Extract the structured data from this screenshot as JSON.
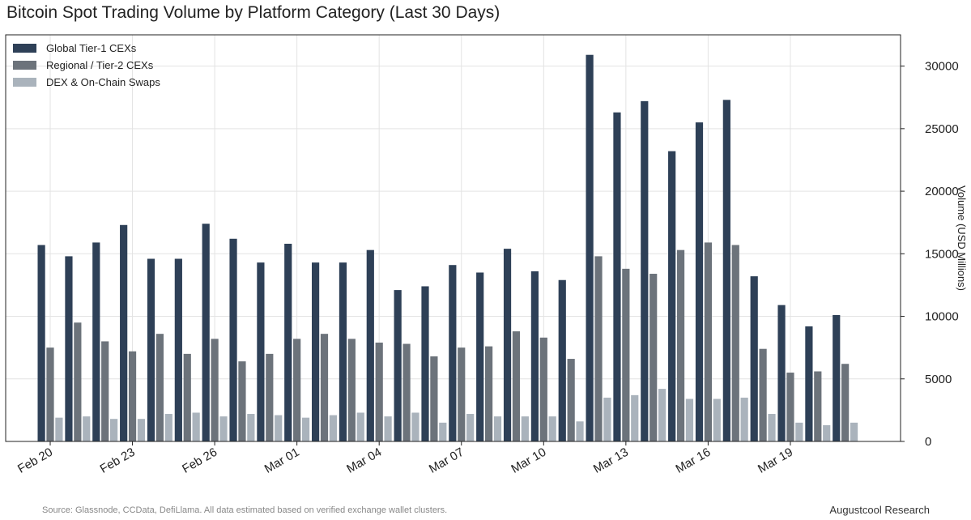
{
  "chart_data": {
    "type": "bar",
    "title": "Bitcoin Spot Trading Volume by Platform Category (Last 30 Days)",
    "xlabel": "",
    "ylabel": "Volume (USD Millions)",
    "ylim": [
      0,
      32500
    ],
    "yticks": [
      0,
      5000,
      10000,
      15000,
      20000,
      25000,
      30000
    ],
    "y_axis_position": "right",
    "grid": true,
    "legend_position": "top-left",
    "categories": [
      "Feb 20",
      "Feb 21",
      "Feb 22",
      "Feb 23",
      "Feb 24",
      "Feb 25",
      "Feb 26",
      "Feb 27",
      "Feb 28",
      "Mar 01",
      "Mar 02",
      "Mar 03",
      "Mar 04",
      "Mar 05",
      "Mar 06",
      "Mar 07",
      "Mar 08",
      "Mar 09",
      "Mar 10",
      "Mar 11",
      "Mar 12",
      "Mar 13",
      "Mar 14",
      "Mar 15",
      "Mar 16",
      "Mar 17",
      "Mar 18",
      "Mar 19",
      "Mar 20",
      "Mar 21"
    ],
    "xticks": [
      "Feb 20",
      "Feb 23",
      "Feb 26",
      "Mar 01",
      "Mar 04",
      "Mar 07",
      "Mar 10",
      "Mar 13",
      "Mar 16",
      "Mar 19"
    ],
    "series": [
      {
        "name": "Global Tier-1 CEXs",
        "color": "#2e4057",
        "values": [
          15700,
          14800,
          15900,
          17300,
          14600,
          14600,
          17400,
          16200,
          14300,
          15800,
          14300,
          14300,
          15300,
          12100,
          12400,
          14100,
          13500,
          15400,
          13600,
          12900,
          30900,
          26300,
          27200,
          23200,
          25500,
          27300,
          13200,
          10900,
          9200,
          10100
        ]
      },
      {
        "name": "Regional / Tier-2 CEXs",
        "color": "#6c737b",
        "values": [
          7500,
          9500,
          8000,
          7200,
          8600,
          7000,
          8200,
          6400,
          7000,
          8200,
          8600,
          8200,
          7900,
          7800,
          6800,
          7500,
          7600,
          8800,
          8300,
          6600,
          14800,
          13800,
          13400,
          15300,
          15900,
          15700,
          7400,
          5500,
          5600,
          6200
        ]
      },
      {
        "name": "DEX & On-Chain Swaps",
        "color": "#aab3bc",
        "values": [
          1900,
          2000,
          1800,
          1800,
          2200,
          2300,
          2000,
          2200,
          2100,
          1900,
          2100,
          2300,
          2000,
          2300,
          1500,
          2200,
          2000,
          2000,
          2000,
          1600,
          3500,
          3700,
          4200,
          3400,
          3400,
          3500,
          2200,
          1500,
          1300,
          1500
        ]
      }
    ]
  },
  "footer": {
    "source": "Source: Glassnode, CCData, DefiLlama. All data estimated based on verified exchange wallet clusters.",
    "brand": "Augustcool Research"
  }
}
